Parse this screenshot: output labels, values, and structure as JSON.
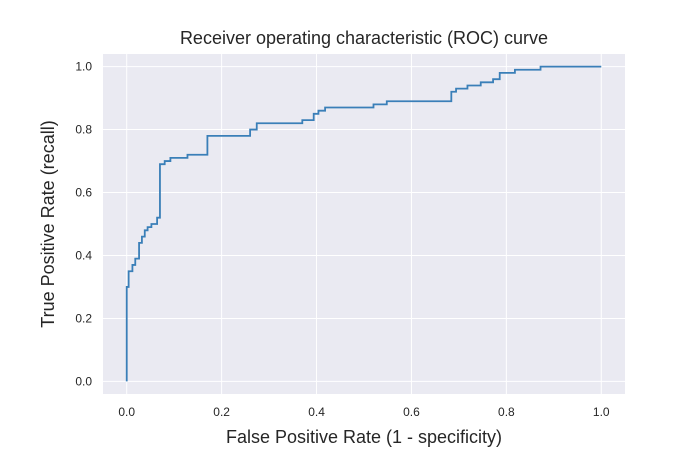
{
  "chart_data": {
    "type": "line",
    "title": "Receiver operating characteristic (ROC) curve",
    "xlabel": "False Positive Rate (1 - specificity)",
    "ylabel": "True Positive Rate (recall)",
    "xlim": [
      -0.05,
      1.05
    ],
    "ylim": [
      -0.04,
      1.04
    ],
    "xticks": [
      0.0,
      0.2,
      0.4,
      0.6,
      0.8,
      1.0
    ],
    "xtick_labels": [
      "0.0",
      "0.2",
      "0.4",
      "0.6",
      "0.8",
      "1.0"
    ],
    "yticks": [
      0.0,
      0.2,
      0.4,
      0.6,
      0.8,
      1.0
    ],
    "ytick_labels": [
      "0.0",
      "0.2",
      "0.4",
      "0.6",
      "0.8",
      "1.0"
    ],
    "grid": true,
    "background_color": "#eaeaf2",
    "grid_color": "#ffffff",
    "line_color": "#3a7fb8",
    "series": [
      {
        "x": [
          0.0,
          0.0,
          0.004,
          0.004,
          0.012,
          0.012,
          0.018,
          0.018,
          0.026,
          0.026,
          0.032,
          0.032,
          0.038,
          0.038,
          0.044,
          0.044,
          0.052,
          0.052,
          0.064,
          0.064,
          0.07,
          0.07,
          0.08,
          0.08,
          0.092,
          0.092,
          0.128,
          0.128,
          0.17,
          0.17,
          0.26,
          0.26,
          0.274,
          0.274,
          0.37,
          0.37,
          0.394,
          0.394,
          0.404,
          0.404,
          0.418,
          0.418,
          0.52,
          0.52,
          0.548,
          0.548,
          0.684,
          0.684,
          0.694,
          0.694,
          0.718,
          0.718,
          0.746,
          0.746,
          0.772,
          0.772,
          0.786,
          0.786,
          0.818,
          0.818,
          0.872,
          0.872,
          0.9,
          0.9,
          1.0
        ],
        "y": [
          0.0,
          0.3,
          0.3,
          0.35,
          0.35,
          0.37,
          0.37,
          0.39,
          0.39,
          0.44,
          0.44,
          0.46,
          0.46,
          0.48,
          0.48,
          0.49,
          0.49,
          0.5,
          0.5,
          0.52,
          0.52,
          0.69,
          0.69,
          0.7,
          0.7,
          0.71,
          0.71,
          0.72,
          0.72,
          0.78,
          0.78,
          0.8,
          0.8,
          0.82,
          0.82,
          0.83,
          0.83,
          0.85,
          0.85,
          0.86,
          0.86,
          0.87,
          0.87,
          0.88,
          0.88,
          0.89,
          0.89,
          0.92,
          0.92,
          0.93,
          0.93,
          0.94,
          0.94,
          0.95,
          0.95,
          0.96,
          0.96,
          0.98,
          0.98,
          0.99,
          0.99,
          1.0,
          1.0,
          1.0,
          1.0
        ]
      }
    ]
  }
}
